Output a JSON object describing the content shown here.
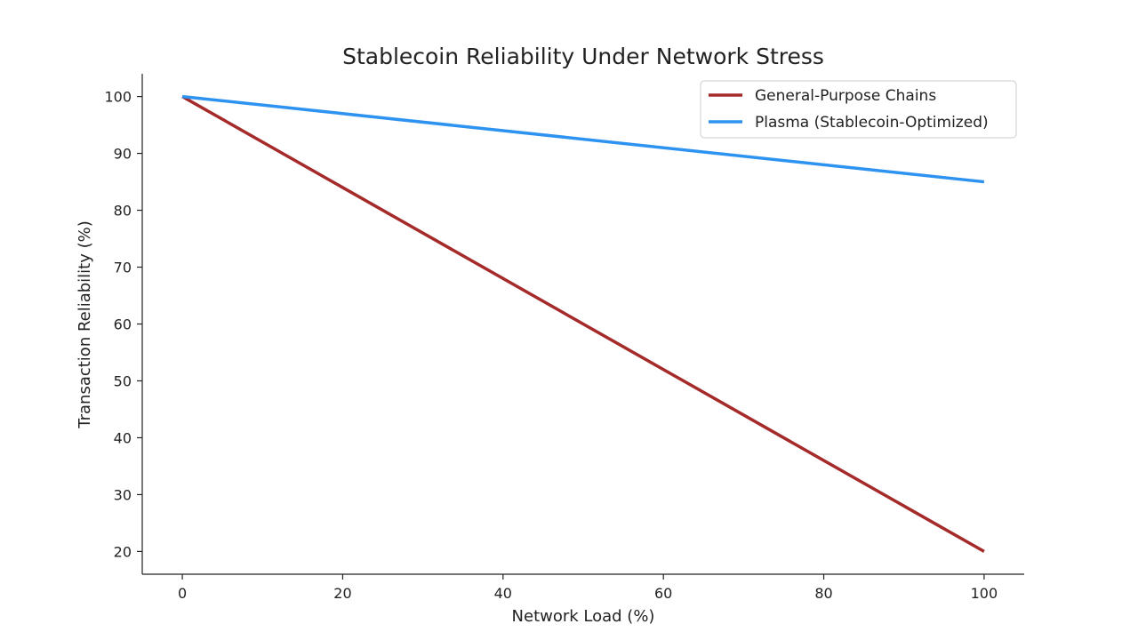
{
  "chart_data": {
    "type": "line",
    "title": "Stablecoin Reliability Under Network Stress",
    "xlabel": "Network Load (%)",
    "ylabel": "Transaction Reliability (%)",
    "xlim": [
      -5,
      105
    ],
    "ylim": [
      16,
      104
    ],
    "xticks": [
      0,
      20,
      40,
      60,
      80,
      100
    ],
    "yticks": [
      20,
      30,
      40,
      50,
      60,
      70,
      80,
      90,
      100
    ],
    "grid": false,
    "legend_position": "top-right",
    "series": [
      {
        "name": "General-Purpose Chains",
        "color": "#a52a2a",
        "x": [
          0,
          100
        ],
        "y": [
          100,
          20
        ]
      },
      {
        "name": "Plasma (Stablecoin-Optimized)",
        "color": "#2e93f0",
        "x": [
          0,
          100
        ],
        "y": [
          100,
          85
        ]
      }
    ]
  }
}
